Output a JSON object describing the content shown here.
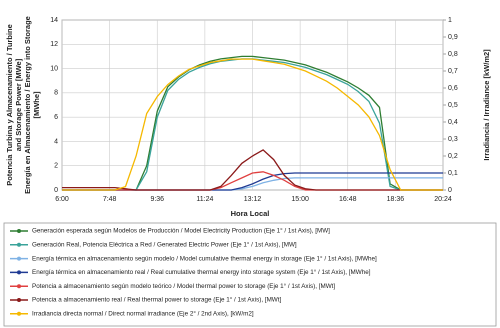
{
  "chart_data": {
    "type": "line",
    "ylabel_lines": [
      "Potencia Turbina y Almacenamiento / Turbine",
      "and Storage Power [MWe]",
      "Energía en Almacenamiento / Energy into Storage",
      "[MWhe]"
    ],
    "xlabel": "Hora Local",
    "y2label": "Irradiancia / Irradiance [kW/m2]",
    "x": [
      6.0,
      6.4,
      6.8,
      7.2,
      7.6,
      8.0,
      8.4,
      8.8,
      9.2,
      9.6,
      10.0,
      10.4,
      10.8,
      11.2,
      11.6,
      12.0,
      12.4,
      12.8,
      13.2,
      13.6,
      14.0,
      14.4,
      14.8,
      15.2,
      15.6,
      16.0,
      16.4,
      16.8,
      17.2,
      17.6,
      18.0,
      18.4,
      18.8,
      19.2,
      19.6,
      20.0,
      20.4
    ],
    "xlim": [
      6.0,
      20.4
    ],
    "xticks": [
      {
        "value": 6.0,
        "label": "6:00"
      },
      {
        "value": 7.8,
        "label": "7:48"
      },
      {
        "value": 9.6,
        "label": "9:36"
      },
      {
        "value": 11.4,
        "label": "11:24"
      },
      {
        "value": 13.2,
        "label": "13:12"
      },
      {
        "value": 15.0,
        "label": "15:00"
      },
      {
        "value": 16.8,
        "label": "16:48"
      },
      {
        "value": 18.6,
        "label": "18:36"
      },
      {
        "value": 20.4,
        "label": "20:24"
      }
    ],
    "ylim": [
      0,
      14
    ],
    "yticks": [
      0,
      2,
      4,
      6,
      8,
      10,
      12,
      14
    ],
    "y2lim": [
      0,
      1
    ],
    "y2ticks": [
      0,
      {
        "value": 0.1,
        "label": "0,1"
      },
      {
        "value": 0.2,
        "label": "0,2"
      },
      {
        "value": 0.3,
        "label": "0,3"
      },
      {
        "value": 0.4,
        "label": "0,4"
      },
      {
        "value": 0.5,
        "label": "0,5"
      },
      {
        "value": 0.6,
        "label": "0,6"
      },
      {
        "value": 0.7,
        "label": "0,7"
      },
      {
        "value": 0.8,
        "label": "0,8"
      },
      {
        "value": 0.9,
        "label": "0,9"
      },
      1
    ],
    "grid": true,
    "series": [
      {
        "name": "Generación esperada según Modelos de Producción / Model Electricity Production (Eje 1° / 1st Axis), [MW]",
        "color": "#2e7d32",
        "values": [
          0,
          0,
          0,
          0,
          0,
          0,
          0,
          0,
          2,
          6.5,
          8.5,
          9.3,
          9.9,
          10.3,
          10.6,
          10.8,
          10.9,
          11,
          11,
          10.9,
          10.8,
          10.7,
          10.5,
          10.3,
          10,
          9.7,
          9.3,
          8.9,
          8.4,
          7.8,
          6.8,
          0.5,
          0,
          0,
          0,
          0,
          0
        ]
      },
      {
        "name": "Generación Real, Potencia Eléctrica a Red / Generated Electric Power (Eje 1° / 1st Axis), [MW]",
        "color": "#3aa39a",
        "values": [
          0,
          0,
          0,
          0,
          0,
          0,
          0,
          0,
          1.5,
          6,
          8.2,
          9.1,
          9.7,
          10.1,
          10.4,
          10.6,
          10.7,
          10.8,
          10.8,
          10.7,
          10.6,
          10.5,
          10.3,
          10.1,
          9.8,
          9.5,
          9.1,
          8.7,
          8.1,
          7.3,
          5.5,
          0.3,
          0,
          0,
          0,
          0,
          0
        ]
      },
      {
        "name": "Energía térmica en almacenamiento según modelo / Model cumulative thermal energy in storage (Eje 1° / 1st Axis), [MWhe]",
        "color": "#7fb2e5",
        "values": [
          0,
          0,
          0,
          0,
          0,
          0,
          0,
          0,
          0,
          0,
          0,
          0,
          0,
          0,
          0,
          0,
          0,
          0.1,
          0.3,
          0.6,
          0.8,
          0.95,
          1,
          1,
          1,
          1,
          1,
          1,
          1,
          1,
          1,
          1,
          1,
          1,
          1,
          1,
          1
        ]
      },
      {
        "name": "Energía térmica en almacenamiento real / Real cumulative thermal energy into storage system (Eje 1° / 1st Axis), [MWhe]",
        "color": "#1f3a93",
        "values": [
          0,
          0,
          0,
          0,
          0,
          0,
          0,
          0,
          0,
          0,
          0,
          0,
          0,
          0,
          0,
          0,
          0,
          0.2,
          0.5,
          0.9,
          1.2,
          1.35,
          1.4,
          1.4,
          1.4,
          1.4,
          1.4,
          1.4,
          1.4,
          1.4,
          1.4,
          1.4,
          1.4,
          1.4,
          1.4,
          1.4,
          1.4
        ]
      },
      {
        "name": "Potencia a almacenamiento según modelo teórico / Model thermal power to storage (Eje 1° / 1st Axis), [MWt]",
        "color": "#e04040",
        "values": [
          0,
          0,
          0,
          0,
          0,
          0,
          0,
          0,
          0,
          0,
          0,
          0,
          0,
          0,
          0,
          0.2,
          0.6,
          1.0,
          1.4,
          1.5,
          1.2,
          0.8,
          0.3,
          0,
          0,
          0,
          0,
          0,
          0,
          0,
          0,
          0,
          0,
          0,
          0,
          0,
          0
        ]
      },
      {
        "name": "Potencia a almacenamiento real / Real thermal power to storage (Eje 1° / 1st Axis), [MWt]",
        "color": "#8b1a1a",
        "values": [
          0.2,
          0.2,
          0.2,
          0.2,
          0.2,
          0.2,
          0.1,
          0,
          0,
          0,
          0,
          0,
          0,
          0,
          0,
          0.3,
          1.2,
          2.2,
          2.8,
          3.3,
          2.5,
          1.2,
          0.4,
          0.1,
          0,
          0,
          0,
          0,
          0,
          0,
          0,
          0,
          0,
          0,
          0,
          0,
          0
        ]
      },
      {
        "name": "Irradiancia directa normal / Direct normal irradiance (Eje 2° / 2nd Axis), [kW/m2]",
        "color": "#f5b800",
        "axis": "y2",
        "values": [
          0,
          0,
          0,
          0,
          0,
          0,
          0.02,
          0.2,
          0.45,
          0.55,
          0.62,
          0.67,
          0.71,
          0.73,
          0.75,
          0.76,
          0.77,
          0.77,
          0.77,
          0.76,
          0.75,
          0.74,
          0.72,
          0.7,
          0.67,
          0.64,
          0.6,
          0.55,
          0.5,
          0.43,
          0.32,
          0.12,
          0,
          0,
          0,
          0,
          0
        ]
      }
    ]
  }
}
